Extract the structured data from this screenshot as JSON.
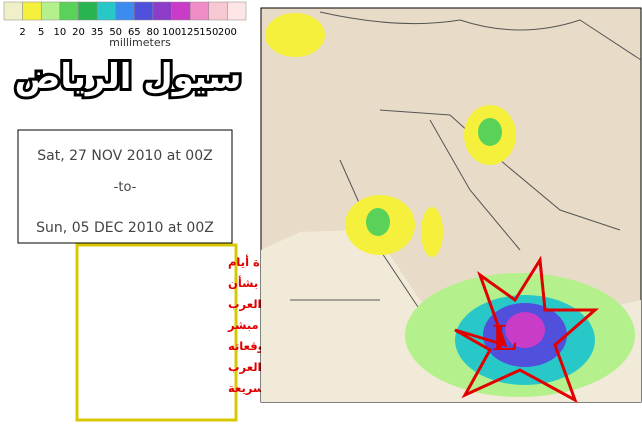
{
  "legend": {
    "colors": [
      "#f0f0c8",
      "#f5f03c",
      "#b4f08c",
      "#5ad25a",
      "#28b450",
      "#28c8c8",
      "#3c8cf0",
      "#5050dc",
      "#8c3cc8",
      "#c83cc8",
      "#f08cc8",
      "#f5c8d2",
      "#ffe6e6"
    ],
    "ticks": [
      "2",
      "5",
      "10",
      "20",
      "35",
      "50",
      "65",
      "80",
      "100",
      "125",
      "150",
      "200"
    ],
    "unit": "millimeters"
  },
  "header": {
    "title": "سيول الرياض"
  },
  "period": {
    "start": "Sat, 27 NOV 2010 at 00Z",
    "separator": "-to-",
    "end": "Sun, 05 DEC 2010 at 00Z"
  },
  "note": {
    "lines": [
      "مازال موديل الناسا ومنذ عدة أيام",
      "ماضية يستمر في توقعاته بشأن",
      "ظهور حالة قوية في بحر العرب",
      "لنهاية الشهر . وهذا يعد أمر مبشر",
      "خاصة وأن الناسا في أغلب توقعاته",
      "الماضية بشأن حالات بحر العرب",
      "كانت متقلبة وسريعة"
    ]
  },
  "map": {
    "low_label": "L"
  }
}
